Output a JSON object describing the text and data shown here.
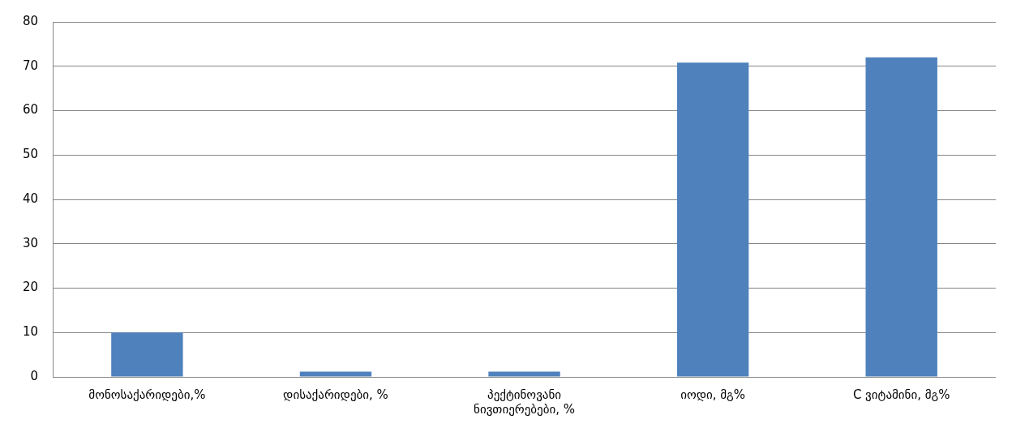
{
  "chart_data": {
    "type": "bar",
    "categories": [
      "მონოსაქარიდები,%",
      "დისაქარიდები, %",
      "პექტინოვანი ნივთიერებები, %",
      "იოდი, მგ%",
      "C ვიტამინი, მგ%"
    ],
    "values": [
      10,
      1.2,
      1.2,
      70.8,
      72
    ],
    "color": "#4f81bd",
    "ylim": [
      0,
      80
    ],
    "yticks": [
      0,
      10,
      20,
      30,
      40,
      50,
      60,
      70,
      80
    ],
    "grid": "y",
    "legend": false
  }
}
